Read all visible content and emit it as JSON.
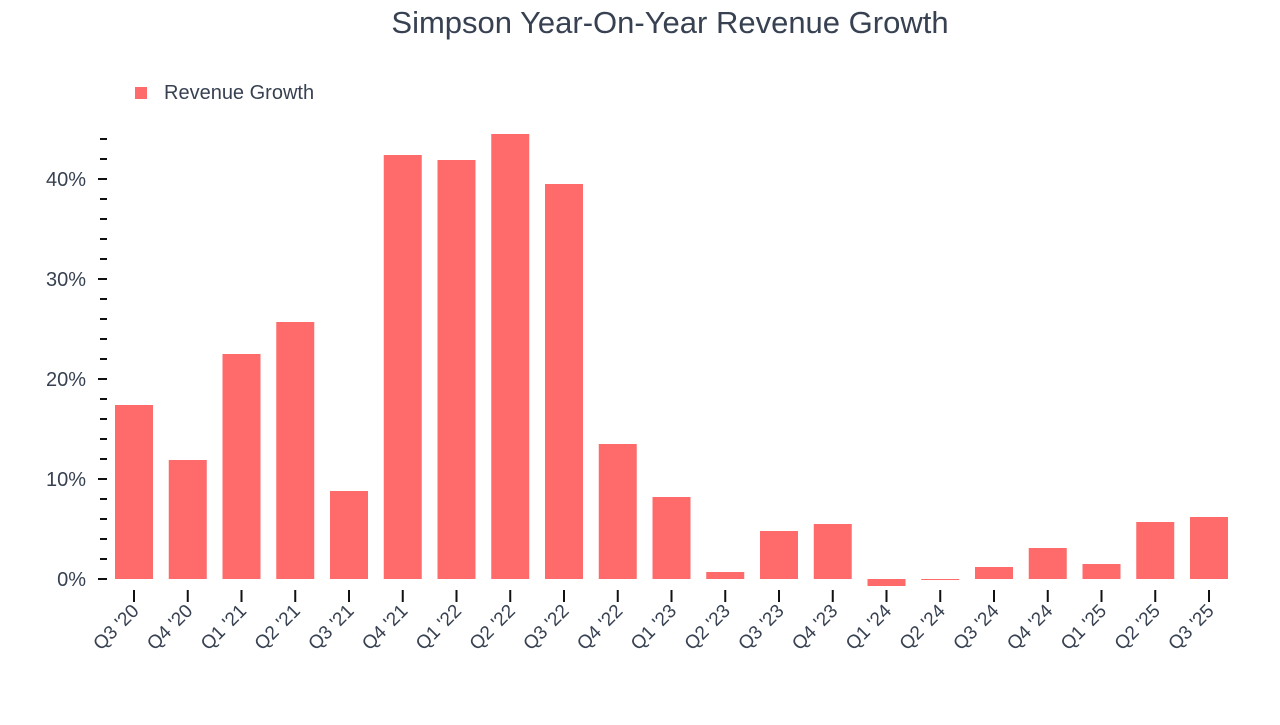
{
  "chart_data": {
    "type": "bar",
    "title": "Simpson Year-On-Year Revenue Growth",
    "xlabel": "",
    "ylabel": "",
    "ylim": [
      -1,
      46
    ],
    "yticks": [
      0,
      10,
      20,
      30,
      40
    ],
    "ytick_labels": [
      "0%",
      "10%",
      "20%",
      "30%",
      "40%"
    ],
    "grid": false,
    "legend": {
      "position": "top-left",
      "entries": [
        "Revenue Growth"
      ]
    },
    "bar_color": "#ff6b6b",
    "categories": [
      "Q3 '20",
      "Q4 '20",
      "Q1 '21",
      "Q2 '21",
      "Q3 '21",
      "Q4 '21",
      "Q1 '22",
      "Q2 '22",
      "Q3 '22",
      "Q4 '22",
      "Q1 '23",
      "Q2 '23",
      "Q3 '23",
      "Q4 '23",
      "Q1 '24",
      "Q2 '24",
      "Q3 '24",
      "Q4 '24",
      "Q1 '25",
      "Q2 '25",
      "Q3 '25"
    ],
    "series": [
      {
        "name": "Revenue Growth",
        "values": [
          17.4,
          11.9,
          22.5,
          25.7,
          8.8,
          42.4,
          41.9,
          44.5,
          39.5,
          13.5,
          8.2,
          0.7,
          4.8,
          5.5,
          -0.7,
          -0.1,
          1.2,
          3.1,
          1.5,
          5.7,
          6.2
        ]
      }
    ]
  }
}
